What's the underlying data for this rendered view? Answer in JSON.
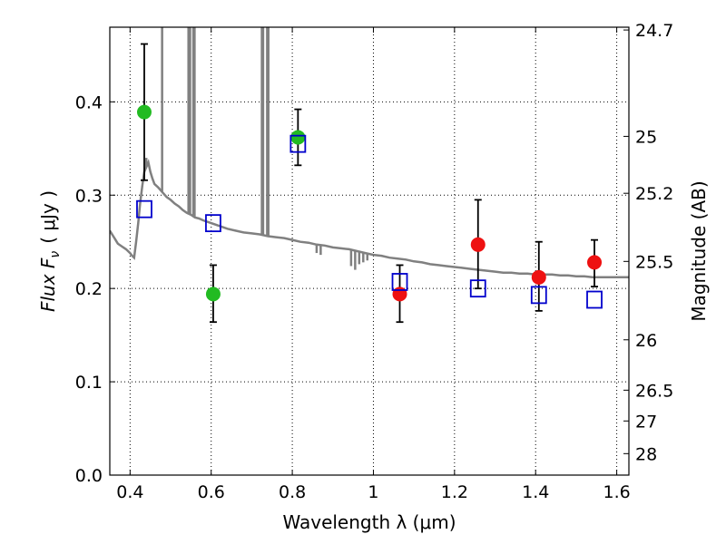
{
  "chart_data": {
    "type": "scatter",
    "xlabel": "Wavelength  λ (μm)",
    "ylabel": "Flux  F",
    "ylabel_sub": "ν",
    "ylabel_unit": "( μJy )",
    "ylabel_right": "Magnitude (AB)",
    "xlim": [
      0.35,
      1.63
    ],
    "ylim": [
      0.0,
      0.48
    ],
    "grid": true,
    "x_ticks": [
      0.4,
      0.6,
      0.8,
      1.0,
      1.2,
      1.4,
      1.6
    ],
    "x_tick_labels": [
      "0.4",
      "0.6",
      "0.8",
      "1",
      "1.2",
      "1.4",
      "1.6"
    ],
    "y_ticks": [
      0.0,
      0.1,
      0.2,
      0.3,
      0.4
    ],
    "y_tick_labels": [
      "0.0",
      "0.1",
      "0.2",
      "0.3",
      "0.4"
    ],
    "right_ticks": [
      {
        "label": "24.7",
        "flux": 0.477
      },
      {
        "label": "25",
        "flux": 0.363
      },
      {
        "label": "25.2",
        "flux": 0.302
      },
      {
        "label": "25.5",
        "flux": 0.229
      },
      {
        "label": "26",
        "flux": 0.145
      },
      {
        "label": "26.5",
        "flux": 0.091
      },
      {
        "label": "27",
        "flux": 0.058
      },
      {
        "label": "28",
        "flux": 0.023
      }
    ],
    "colors": {
      "model": "#808080",
      "green": "#22bb22",
      "red": "#ee1111",
      "square": "#0000cc",
      "errorbar": "#000000"
    },
    "model_spectrum": [
      [
        0.35,
        0.262
      ],
      [
        0.36,
        0.255
      ],
      [
        0.37,
        0.248
      ],
      [
        0.38,
        0.245
      ],
      [
        0.39,
        0.242
      ],
      [
        0.4,
        0.238
      ],
      [
        0.405,
        0.235
      ],
      [
        0.41,
        0.233
      ],
      [
        0.415,
        0.25
      ],
      [
        0.42,
        0.27
      ],
      [
        0.425,
        0.292
      ],
      [
        0.43,
        0.31
      ],
      [
        0.435,
        0.325
      ],
      [
        0.44,
        0.33
      ],
      [
        0.445,
        0.335
      ],
      [
        0.45,
        0.325
      ],
      [
        0.455,
        0.318
      ],
      [
        0.46,
        0.312
      ],
      [
        0.47,
        0.308
      ],
      [
        0.48,
        0.303
      ],
      [
        0.49,
        0.298
      ],
      [
        0.5,
        0.295
      ],
      [
        0.51,
        0.291
      ],
      [
        0.52,
        0.288
      ],
      [
        0.53,
        0.284
      ],
      [
        0.54,
        0.281
      ],
      [
        0.55,
        0.279
      ],
      [
        0.56,
        0.276
      ],
      [
        0.57,
        0.275
      ],
      [
        0.58,
        0.273
      ],
      [
        0.6,
        0.27
      ],
      [
        0.62,
        0.267
      ],
      [
        0.64,
        0.264
      ],
      [
        0.66,
        0.262
      ],
      [
        0.68,
        0.26
      ],
      [
        0.7,
        0.259
      ],
      [
        0.72,
        0.258
      ],
      [
        0.74,
        0.256
      ],
      [
        0.76,
        0.255
      ],
      [
        0.78,
        0.254
      ],
      [
        0.8,
        0.252
      ],
      [
        0.82,
        0.25
      ],
      [
        0.84,
        0.249
      ],
      [
        0.86,
        0.247
      ],
      [
        0.88,
        0.246
      ],
      [
        0.9,
        0.244
      ],
      [
        0.92,
        0.243
      ],
      [
        0.94,
        0.242
      ],
      [
        0.96,
        0.24
      ],
      [
        0.98,
        0.238
      ],
      [
        1.0,
        0.236
      ],
      [
        1.02,
        0.235
      ],
      [
        1.04,
        0.233
      ],
      [
        1.06,
        0.232
      ],
      [
        1.08,
        0.231
      ],
      [
        1.1,
        0.229
      ],
      [
        1.12,
        0.228
      ],
      [
        1.14,
        0.226
      ],
      [
        1.16,
        0.225
      ],
      [
        1.18,
        0.224
      ],
      [
        1.2,
        0.223
      ],
      [
        1.22,
        0.222
      ],
      [
        1.24,
        0.221
      ],
      [
        1.26,
        0.22
      ],
      [
        1.28,
        0.219
      ],
      [
        1.3,
        0.218
      ],
      [
        1.32,
        0.217
      ],
      [
        1.34,
        0.217
      ],
      [
        1.36,
        0.216
      ],
      [
        1.38,
        0.216
      ],
      [
        1.4,
        0.215
      ],
      [
        1.42,
        0.215
      ],
      [
        1.44,
        0.215
      ],
      [
        1.46,
        0.214
      ],
      [
        1.48,
        0.214
      ],
      [
        1.5,
        0.213
      ],
      [
        1.52,
        0.213
      ],
      [
        1.54,
        0.212
      ],
      [
        1.56,
        0.212
      ],
      [
        1.58,
        0.212
      ],
      [
        1.6,
        0.212
      ],
      [
        1.63,
        0.212
      ]
    ],
    "model_spikes": [
      {
        "x": 0.44,
        "to": 0.34
      },
      {
        "x": 0.479,
        "to": 0.48
      },
      {
        "x": 0.544,
        "to": 0.48
      },
      {
        "x": 0.548,
        "to": 0.48
      },
      {
        "x": 0.556,
        "to": 0.48
      },
      {
        "x": 0.559,
        "to": 0.48
      },
      {
        "x": 0.725,
        "to": 0.48
      },
      {
        "x": 0.728,
        "to": 0.48
      },
      {
        "x": 0.738,
        "to": 0.48
      },
      {
        "x": 0.741,
        "to": 0.48
      }
    ],
    "model_dips": [
      {
        "x": 0.945,
        "to": 0.224
      },
      {
        "x": 0.955,
        "to": 0.22
      },
      {
        "x": 0.965,
        "to": 0.226
      },
      {
        "x": 0.975,
        "to": 0.228
      },
      {
        "x": 0.985,
        "to": 0.23
      },
      {
        "x": 0.86,
        "to": 0.238
      },
      {
        "x": 0.87,
        "to": 0.236
      }
    ],
    "series": [
      {
        "marker": "circle",
        "color_key": "green",
        "points": [
          {
            "x": 0.435,
            "y": 0.389,
            "yerr_low": 0.316,
            "yerr_high": 0.462
          },
          {
            "x": 0.605,
            "y": 0.194,
            "yerr_low": 0.164,
            "yerr_high": 0.225
          },
          {
            "x": 0.814,
            "y": 0.362,
            "yerr_low": 0.332,
            "yerr_high": 0.392
          }
        ]
      },
      {
        "marker": "circle",
        "color_key": "red",
        "points": [
          {
            "x": 1.065,
            "y": 0.194,
            "yerr_low": 0.164,
            "yerr_high": 0.225
          },
          {
            "x": 1.258,
            "y": 0.247,
            "yerr_low": 0.2,
            "yerr_high": 0.295
          },
          {
            "x": 1.408,
            "y": 0.212,
            "yerr_low": 0.176,
            "yerr_high": 0.25
          },
          {
            "x": 1.545,
            "y": 0.228,
            "yerr_low": 0.202,
            "yerr_high": 0.252
          }
        ]
      },
      {
        "marker": "square",
        "color_key": "square",
        "points": [
          {
            "x": 0.435,
            "y": 0.285
          },
          {
            "x": 0.605,
            "y": 0.27
          },
          {
            "x": 0.814,
            "y": 0.355
          },
          {
            "x": 1.065,
            "y": 0.207
          },
          {
            "x": 1.258,
            "y": 0.2
          },
          {
            "x": 1.408,
            "y": 0.193
          },
          {
            "x": 1.545,
            "y": 0.188
          }
        ]
      }
    ]
  }
}
